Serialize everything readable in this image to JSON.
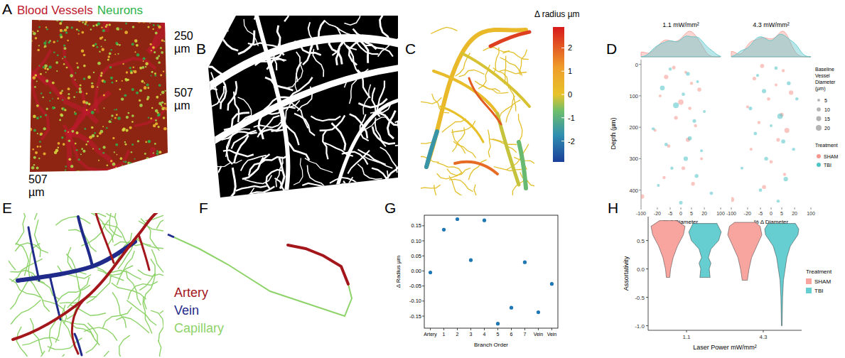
{
  "panels": {
    "A": {
      "letter": "A",
      "channels": [
        {
          "text": "Blood Vessels",
          "color": "#c0192f"
        },
        {
          "text": "Neurons",
          "color": "#2fb34a"
        }
      ],
      "dimensions": [
        "250 µm",
        "507 µm",
        "507 µm"
      ]
    },
    "B": {
      "letter": "B"
    },
    "C": {
      "letter": "C",
      "colorbar": {
        "title": "Δ radius µm",
        "lim": [
          -2.9,
          2.9
        ],
        "ticks": [
          -2,
          -1,
          0,
          1,
          2
        ]
      },
      "segment_delta_radius": [
        0.3,
        -0.1,
        0.2,
        -1.6,
        2.4,
        1.8,
        -0.2,
        0.1,
        2.0,
        -0.8
      ]
    },
    "D": {
      "letter": "D"
    },
    "E": {
      "letter": "E",
      "legend": [
        {
          "text": "Artery",
          "color": "#a3161c"
        },
        {
          "text": "Vein",
          "color": "#1f2a8a"
        },
        {
          "text": "Capillary",
          "color": "#8ed36a"
        }
      ]
    },
    "F": {
      "letter": "F"
    },
    "G": {
      "letter": "G"
    },
    "H": {
      "letter": "H"
    }
  },
  "chart_data": [
    {
      "type": "scatter",
      "xlabel": "% Δ Diameter",
      "ylabel": "Depth (µm)",
      "log": "x",
      "xlim": [
        -100,
        100
      ],
      "xticks": [
        -100,
        -20,
        -5,
        0,
        5,
        20,
        100
      ],
      "ylim": [
        455,
        -15
      ],
      "yticks": [
        0,
        100,
        200,
        300,
        400
      ],
      "legend": "right",
      "legend_title": "Treatment",
      "size_legend": {
        "title": "Baseline Vessel Diameter (µm)",
        "values": [
          5,
          10,
          15,
          20
        ]
      },
      "series": [
        {
          "name": "SHAM",
          "color": "#f4978e"
        },
        {
          "name": "TBI",
          "color": "#4fc3c7"
        }
      ],
      "facets": [
        {
          "title": "1.1 mW/mm²",
          "points": [
            {
              "x": [
                -3,
                2,
                -8,
                5,
                12,
                -15,
                0,
                4,
                -2,
                8,
                -25,
                3,
                -6,
                15,
                1,
                -10,
                6,
                -90
              ],
              "values": [
                10,
                25,
                40,
                60,
                80,
                100,
                120,
                140,
                170,
                195,
                210,
                240,
                260,
                300,
                330,
                360,
                380,
                420
              ],
              "size": [
                8,
                5,
                12,
                6,
                10,
                5,
                18,
                7,
                9,
                6,
                5,
                11,
                7,
                5,
                8,
                6,
                9,
                12
              ]
            },
            {
              "x": [
                -5,
                3,
                10,
                -12,
                1,
                -2,
                20,
                7,
                -30,
                4,
                -8,
                15,
                2,
                -4,
                9,
                -18,
                40,
                0
              ],
              "values": [
                15,
                30,
                55,
                75,
                95,
                130,
                150,
                180,
                205,
                235,
                255,
                275,
                300,
                330,
                355,
                385,
                410,
                440
              ],
              "size": [
                6,
                9,
                5,
                14,
                7,
                20,
                5,
                8,
                6,
                10,
                7,
                5,
                12,
                6,
                9,
                5,
                7,
                8
              ]
            }
          ]
        },
        {
          "title": "4.3 mW/mm²",
          "points": [
            {
              "x": [
                -4,
                6,
                -10,
                2,
                14,
                -1,
                -20,
                5,
                -6,
                9,
                3,
                -14,
                0,
                7,
                -3,
                -95
              ],
              "values": [
                5,
                20,
                45,
                65,
                90,
                110,
                135,
                160,
                185,
                210,
                240,
                270,
                310,
                350,
                390,
                430
              ],
              "size": [
                10,
                6,
                8,
                5,
                12,
                7,
                5,
                9,
                6,
                16,
                8,
                5,
                7,
                6,
                10,
                14
              ]
            },
            {
              "x": [
                2,
                -7,
                11,
                -3,
                25,
                -15,
                4,
                0,
                -9,
                6,
                18,
                -2,
                -35,
                8,
                -5,
                3
              ],
              "values": [
                12,
                35,
                60,
                85,
                110,
                140,
                165,
                195,
                220,
                245,
                270,
                300,
                330,
                365,
                400,
                435
              ],
              "size": [
                7,
                5,
                9,
                11,
                6,
                8,
                18,
                5,
                7,
                10,
                6,
                9,
                5,
                12,
                7,
                6
              ]
            }
          ]
        }
      ]
    },
    {
      "type": "scatter",
      "xlabel": "Branch Order",
      "ylabel": "Δ Radius µm",
      "categories": [
        "Artery",
        "1",
        "2",
        "3",
        "4",
        "5",
        "6",
        "7",
        "Vein",
        "Vein"
      ],
      "values": [
        -0.005,
        0.137,
        0.172,
        0.036,
        0.168,
        -0.175,
        -0.122,
        0.029,
        -0.137,
        -0.043
      ],
      "color": "#1f77b4",
      "ylim": [
        -0.19,
        0.185
      ],
      "yticks": [
        -0.15,
        {
          "value": -0.1,
          "label": "-0.10"
        },
        -0.05,
        {
          "value": 0,
          "label": "0.00"
        },
        0.05,
        {
          "value": 0.1,
          "label": "0.10"
        },
        0.15
      ],
      "grid": false
    },
    {
      "type": "violin",
      "xlabel": "Laser Power mW/mm²",
      "ylabel": "Assortativity",
      "categories": [
        "1.1",
        "4.3"
      ],
      "ylim": [
        -1.08,
        0.92
      ],
      "yticks": [
        {
          "value": -1,
          "label": "-1.0"
        },
        -0.5,
        {
          "value": 0,
          "label": "0.0"
        },
        0.5
      ],
      "legend": "right",
      "legend_title": "Treatment",
      "series": [
        {
          "name": "SHAM",
          "color": "#f8a5a0",
          "violins": [
            {
              "y": [
                -0.15,
                0,
                0.2,
                0.4,
                0.6,
                0.75,
                0.85
              ],
              "density": [
                0.1,
                0.15,
                0.3,
                0.55,
                0.9,
                1.0,
                0.5
              ]
            },
            {
              "y": [
                -0.2,
                0,
                0.2,
                0.4,
                0.6,
                0.75,
                0.82
              ],
              "density": [
                0.15,
                0.25,
                0.4,
                0.7,
                1.0,
                0.9,
                0.6
              ]
            }
          ]
        },
        {
          "name": "TBI",
          "color": "#66cdd0",
          "violins": [
            {
              "y": [
                -0.15,
                0,
                0.1,
                0.2,
                0.35,
                0.5,
                0.65,
                0.8
              ],
              "density": [
                0.3,
                0.25,
                0.35,
                0.2,
                0.35,
                0.8,
                0.95,
                0.7
              ]
            },
            {
              "y": [
                -1,
                -0.5,
                -0.2,
                0,
                0.2,
                0.4,
                0.6,
                0.7,
                0.8
              ],
              "density": [
                0.02,
                0.05,
                0.1,
                0.2,
                0.3,
                0.5,
                0.95,
                1.0,
                0.8
              ]
            }
          ]
        }
      ]
    }
  ]
}
